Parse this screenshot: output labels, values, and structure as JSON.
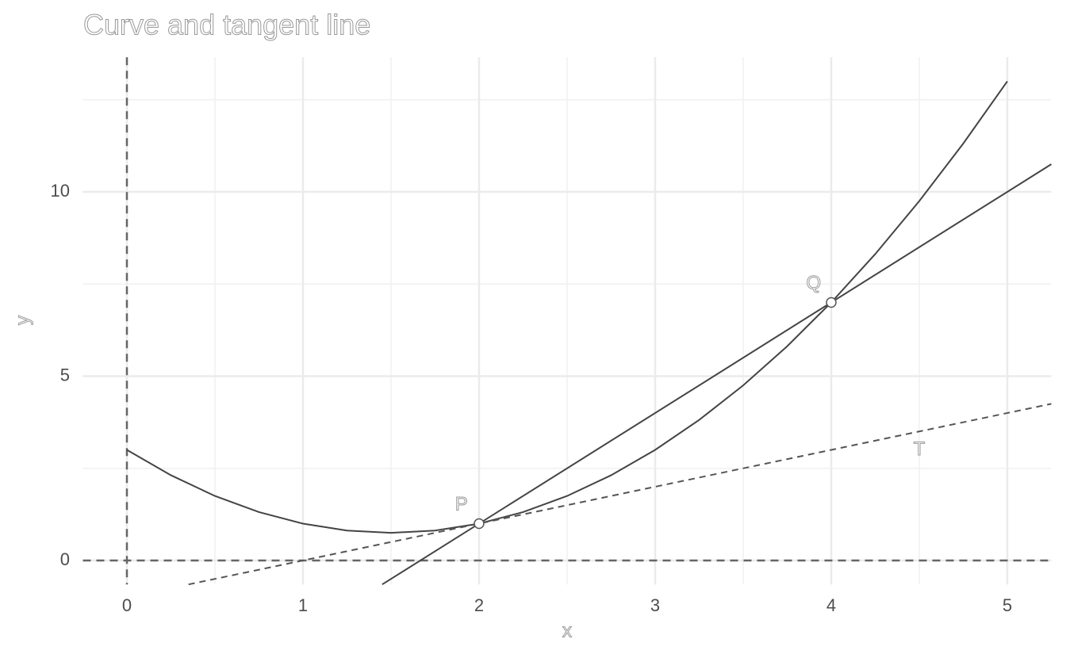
{
  "chart_data": {
    "type": "line",
    "title": "Curve and tangent line",
    "x_label": "x",
    "y_label": "y",
    "xlim": [
      -0.25,
      5.25
    ],
    "ylim": [
      -0.65,
      13.65
    ],
    "xticks": [
      0,
      1,
      2,
      3,
      4,
      5
    ],
    "yticks": [
      0,
      5,
      10
    ],
    "x_minor_ticks": [
      0.5,
      1.5,
      2.5,
      3.5,
      4.5
    ],
    "y_minor_ticks": [
      2.5,
      7.5,
      12.5
    ],
    "grid": true,
    "hline": 0,
    "vline": 0,
    "series": [
      {
        "color": "#444444",
        "dash": false,
        "x": [
          0,
          0.25,
          0.5,
          0.75,
          1,
          1.25,
          1.5,
          1.75,
          2,
          2.25,
          2.5,
          2.75,
          3,
          3.25,
          3.5,
          3.75,
          4,
          4.25,
          4.5,
          4.75,
          5
        ],
        "values": [
          3,
          2.3125,
          1.75,
          1.3125,
          1,
          0.8125,
          0.75,
          0.8125,
          1,
          1.3125,
          1.75,
          2.3125,
          3,
          3.8125,
          4.75,
          5.8125,
          7,
          8.3125,
          9.75,
          11.3125,
          13
        ]
      },
      {
        "color": "#444444",
        "dash": false,
        "x": [
          1.45,
          5.25
        ],
        "values": [
          -0.65,
          10.75
        ]
      },
      {
        "color": "#555555",
        "dash": true,
        "x": [
          0.35,
          5.25
        ],
        "values": [
          -0.65,
          4.25
        ]
      }
    ],
    "points": {
      "x": [
        2,
        4
      ],
      "values": [
        1,
        7
      ]
    },
    "annotations": [
      {
        "text": "P",
        "x": 1.9,
        "y": 1.5
      },
      {
        "text": "Q",
        "x": 3.9,
        "y": 7.5
      },
      {
        "text": "T",
        "x": 4.5,
        "y": 3.0
      }
    ]
  }
}
